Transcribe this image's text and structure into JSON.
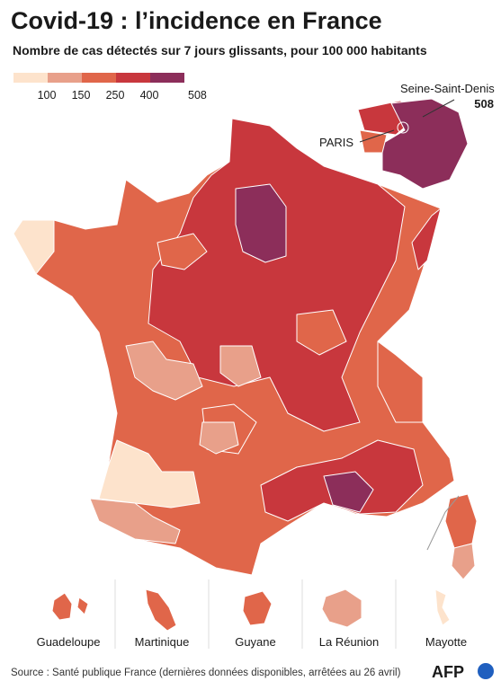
{
  "title": "Covid-19 : l’incidence en France",
  "subtitle": "Nombre de cas détectés sur 7 jours glissants, pour 100 000 habitants",
  "legend": {
    "colors": [
      "#fde3cc",
      "#e8a08a",
      "#e0664a",
      "#c8373d",
      "#8c2e5a"
    ],
    "ticks": [
      100,
      150,
      250,
      400,
      508
    ]
  },
  "callouts": {
    "seine_saint_denis": "Seine-Saint-Denis",
    "seine_saint_denis_value": 508,
    "paris": "PARIS"
  },
  "overseas": [
    "Guadeloupe",
    "Martinique",
    "Guyane",
    "La Réunion",
    "Mayotte"
  ],
  "source": "Source : Santé publique France (dernières données disponibles, arrêtées au 26 avril)",
  "logo": "AFP"
}
